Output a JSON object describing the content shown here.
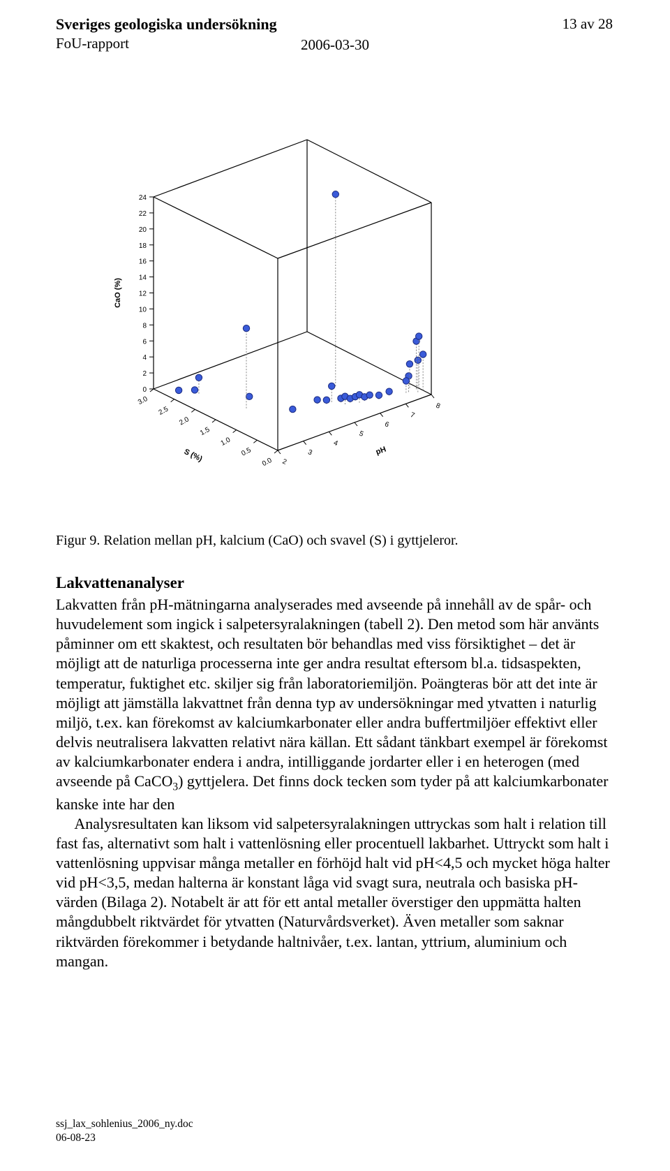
{
  "header": {
    "org_name": "Sveriges geologiska undersökning",
    "report_type": "FoU-rapport",
    "date": "2006-03-30",
    "page_num": "13 av 28"
  },
  "figure": {
    "type": "scatter3d",
    "axes": {
      "z": {
        "label": "CaO (%)",
        "ticks": [
          0,
          2,
          4,
          6,
          8,
          10,
          12,
          14,
          16,
          18,
          20,
          22,
          24
        ],
        "lim": [
          0,
          24
        ]
      },
      "x": {
        "label": "S (%)",
        "ticks": [
          0.0,
          0.5,
          1.0,
          1.5,
          2.0,
          2.5,
          3.0
        ],
        "lim": [
          0.0,
          3.0
        ]
      },
      "y": {
        "label": "pH",
        "ticks": [
          2,
          3,
          4,
          5,
          6,
          7,
          8
        ],
        "lim": [
          2,
          8
        ]
      }
    },
    "marker": {
      "shape": "circle",
      "fill": "#3a5bd9",
      "stroke": "#1a2a80",
      "size": 7
    },
    "dropline_color": "#808080",
    "edge_color": "#000000",
    "background": "#ffffff",
    "tick_fontsize": 10,
    "label_fontsize": 11,
    "points": [
      {
        "s": 2.7,
        "ph": 2.5,
        "cao": 0.0
      },
      {
        "s": 2.5,
        "ph": 2.8,
        "cao": 0.2
      },
      {
        "s": 2.4,
        "ph": 2.8,
        "cao": 2.0
      },
      {
        "s": 1.8,
        "ph": 3.8,
        "cao": 0.0
      },
      {
        "s": 1.5,
        "ph": 3.2,
        "cao": 10.0
      },
      {
        "s": 1.2,
        "ph": 6.2,
        "cao": 24.0
      },
      {
        "s": 1.0,
        "ph": 4.2,
        "cao": 0.0
      },
      {
        "s": 0.9,
        "ph": 5.0,
        "cao": 0.5
      },
      {
        "s": 0.8,
        "ph": 5.2,
        "cao": 0.5
      },
      {
        "s": 0.8,
        "ph": 5.4,
        "cao": 2.0
      },
      {
        "s": 0.7,
        "ph": 5.6,
        "cao": 0.5
      },
      {
        "s": 0.6,
        "ph": 5.6,
        "cao": 1.0
      },
      {
        "s": 0.6,
        "ph": 5.8,
        "cao": 0.5
      },
      {
        "s": 0.6,
        "ph": 6.0,
        "cao": 0.5
      },
      {
        "s": 0.5,
        "ph": 6.0,
        "cao": 1.0
      },
      {
        "s": 0.5,
        "ph": 6.2,
        "cao": 0.5
      },
      {
        "s": 0.5,
        "ph": 6.4,
        "cao": 0.5
      },
      {
        "s": 0.4,
        "ph": 6.6,
        "cao": 0.5
      },
      {
        "s": 0.4,
        "ph": 7.0,
        "cao": 0.5
      },
      {
        "s": 0.3,
        "ph": 7.6,
        "cao": 2.0
      },
      {
        "s": 0.2,
        "ph": 7.8,
        "cao": 4.0
      },
      {
        "s": 0.3,
        "ph": 7.9,
        "cao": 6.0
      },
      {
        "s": 0.3,
        "ph": 8.0,
        "cao": 6.5
      },
      {
        "s": 0.2,
        "ph": 8.0,
        "cao": 4.5
      },
      {
        "s": 0.4,
        "ph": 7.8,
        "cao": 3.0
      },
      {
        "s": 0.3,
        "ph": 7.5,
        "cao": 1.5
      }
    ]
  },
  "caption": "Figur 9. Relation mellan pH, kalcium (CaO) och svavel (S) i gyttjeleror.",
  "section_heading": "Lakvattenanalyser",
  "body_html": "Lakvatten från pH-mätningarna analyserades med avseende på innehåll av de spår- och huvudelement som ingick i salpetersyralakningen (tabell 2). Den metod som här använts påminner om ett skaktest, och resultaten bör behandlas med viss försiktighet – det är möjligt att de naturliga processerna inte ger andra resultat eftersom bl.a. tidsaspekten, temperatur, fuktighet etc. skiljer sig från laboratoriemiljön. Poängteras bör att det inte är möjligt att jämställa lakvattnet från denna typ av undersökningar med ytvatten i naturlig miljö, t.ex. kan förekomst av kalciumkarbonater eller andra buffertmiljöer effektivt eller delvis neutralisera lakvatten relativt nära källan. Ett sådant tänkbart exempel är förekomst av kalciumkarbonater endera i andra, intilliggande jordarter eller i en heterogen (med avseende på CaCO<sub>3</sub>) gyttjelera. Det finns dock tecken som tyder på att kalciumkarbonater kanske inte har den<br><span class=\"indent\"></span>Analysresultaten kan liksom vid salpetersyralakningen uttryckas som halt i relation till fast fas, alternativt som halt i vattenlösning eller procentuell lakbarhet. Uttryckt som halt i vattenlösning uppvisar många metaller en förhöjd halt vid pH&lt;4,5 och mycket höga halter vid pH&lt;3,5, medan halterna är konstant låga vid svagt sura, neutrala och basiska pH-värden (Bilaga 2). Notabelt är att för ett antal metaller överstiger den uppmätta halten mångdubbelt riktvärdet för ytvatten (Naturvårdsverket). Även metaller som saknar riktvärden förekommer i betydande haltnivåer, t.ex. lantan, yttrium, aluminium och mangan.",
  "footer": {
    "filename": "ssj_lax_sohlenius_2006_ny.doc",
    "date": "06-08-23"
  }
}
